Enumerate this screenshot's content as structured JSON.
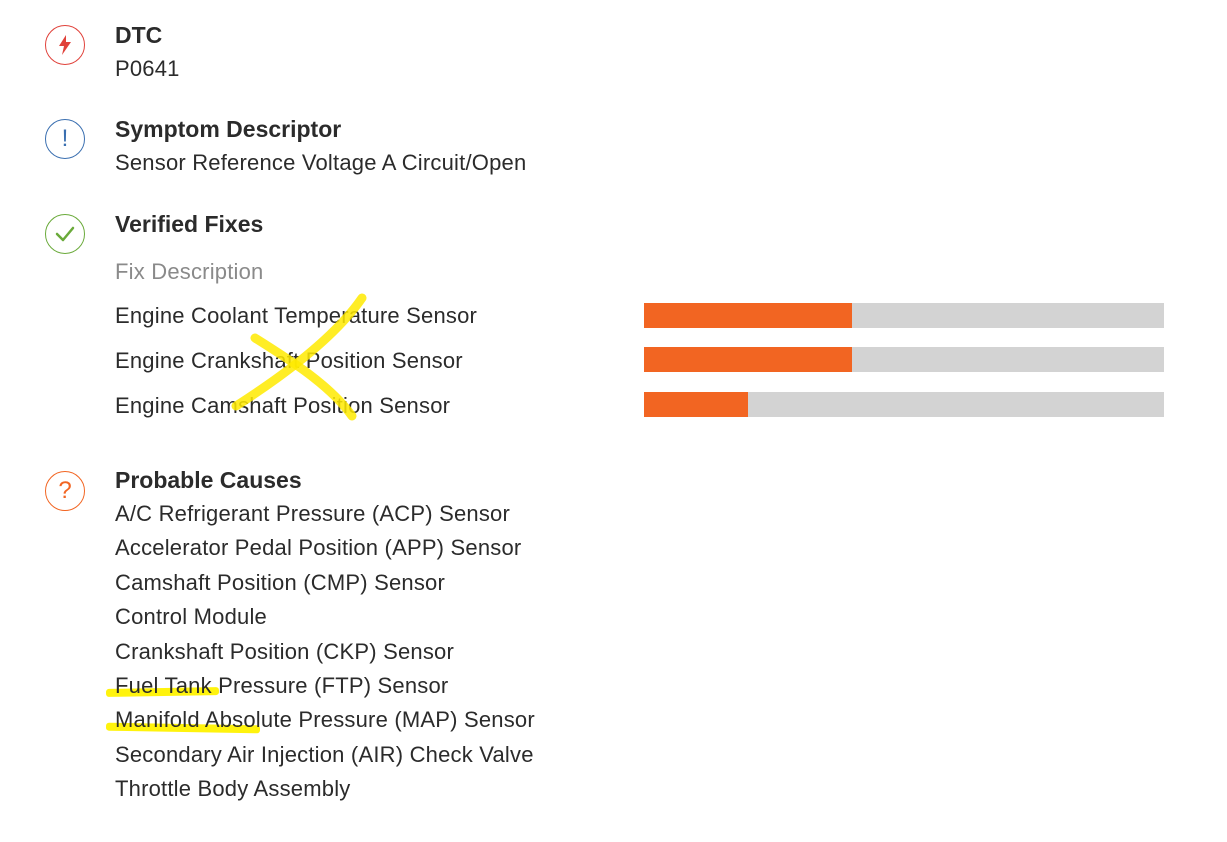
{
  "dtc": {
    "title": "DTC",
    "value": "P0641",
    "icon": "lightning-icon",
    "color": "#e0413a"
  },
  "symptom": {
    "title": "Symptom Descriptor",
    "value": "Sensor Reference Voltage A Circuit/Open",
    "icon": "exclamation-icon",
    "color": "#3a6fb0"
  },
  "verified": {
    "title": "Verified Fixes",
    "icon": "check-icon",
    "color": "#6aaa3a",
    "header": "Fix Description",
    "bar_color": "#f26522",
    "track_color": "#d3d3d3",
    "fixes": [
      {
        "label": "Engine Coolant Temperature Sensor",
        "level": 0.4
      },
      {
        "label": "Engine Crankshaft Position Sensor",
        "level": 0.4
      },
      {
        "label": "Engine Camshaft Position Sensor",
        "level": 0.2
      }
    ]
  },
  "probable": {
    "title": "Probable Causes",
    "icon": "question-icon",
    "color": "#f26522",
    "causes": [
      "A/C Refrigerant Pressure (ACP) Sensor",
      "Accelerator Pedal Position (APP) Sensor",
      "Camshaft Position (CMP) Sensor",
      "Control Module",
      "Crankshaft Position (CKP) Sensor",
      "Fuel Tank Pressure (FTP) Sensor",
      "Manifold Absolute Pressure (MAP) Sensor",
      "Secondary Air Injection (AIR) Check Valve",
      "Throttle Body Assembly"
    ]
  },
  "annotations": {
    "highlight_color": "#fff200"
  }
}
